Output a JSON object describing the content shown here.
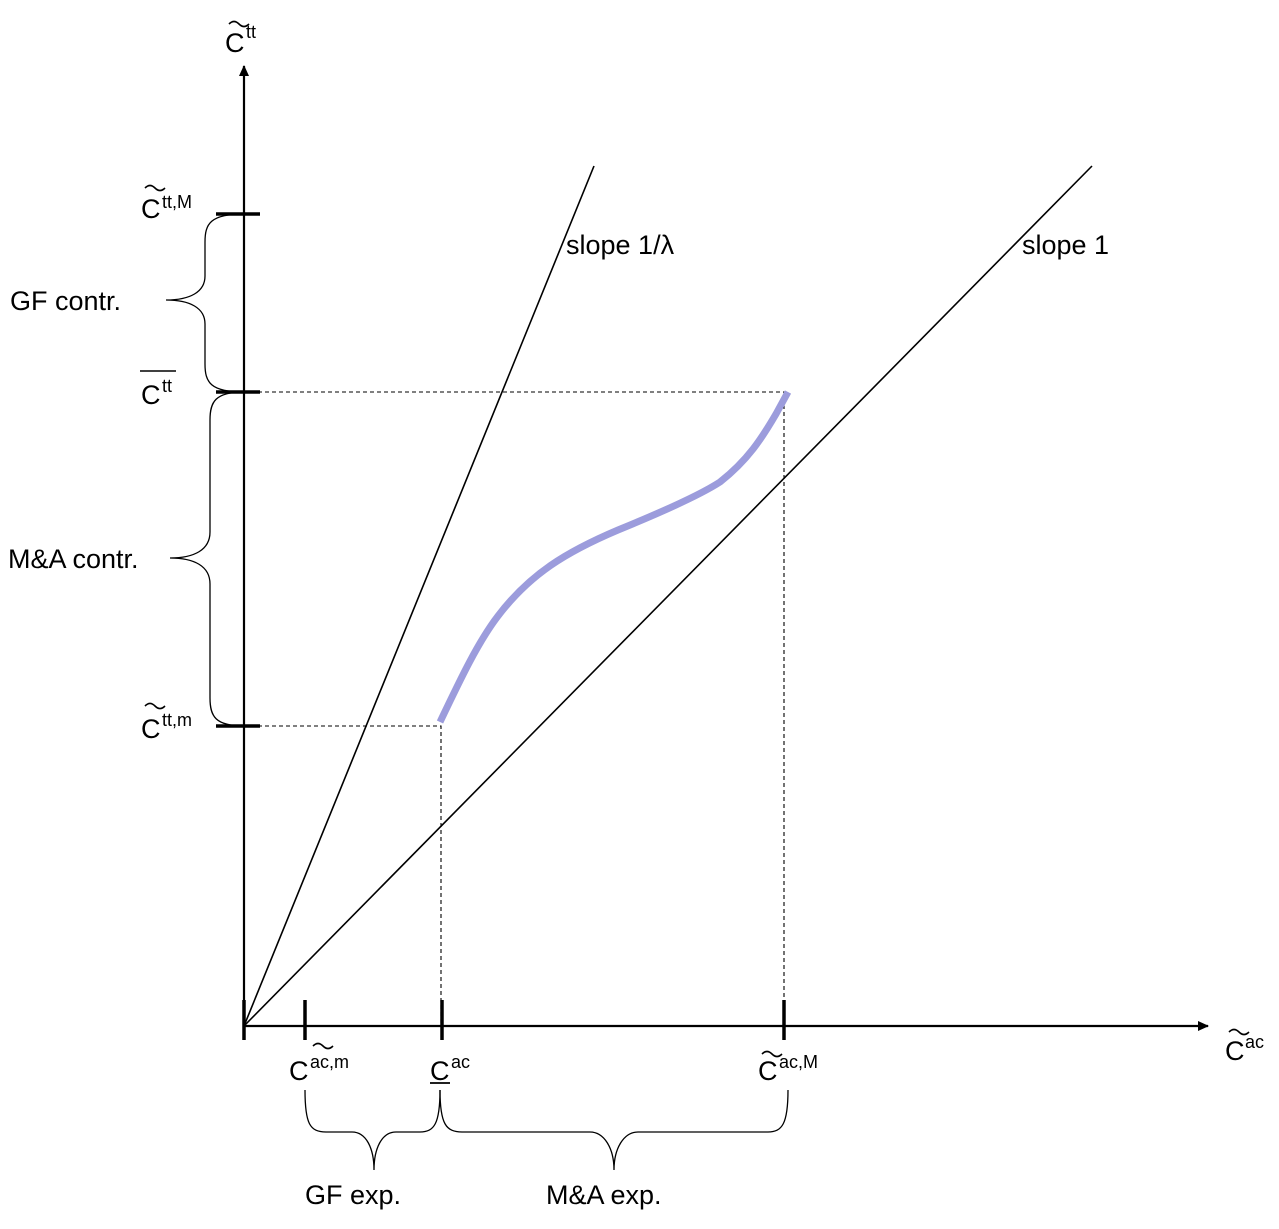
{
  "axes": {
    "y_label": {
      "base": "C",
      "sup": "tt",
      "decoration": "tilde"
    },
    "x_label": {
      "base": "C",
      "sup": "ac",
      "decoration": "tilde"
    }
  },
  "y_ticks": [
    {
      "id": "ctt-M",
      "base": "C",
      "sup": "tt,M",
      "decoration": "tilde"
    },
    {
      "id": "ctt-bar",
      "base": "C",
      "sup": "tt",
      "decoration": "overline"
    },
    {
      "id": "ctt-m",
      "base": "C",
      "sup": "tt,m",
      "decoration": "tilde"
    }
  ],
  "x_ticks": [
    {
      "id": "cac-m",
      "base": "C",
      "sup": "ac,m",
      "decoration": "tilde"
    },
    {
      "id": "cac-under",
      "base": "C",
      "sup": "ac",
      "decoration": "underline"
    },
    {
      "id": "cac-M",
      "base": "C",
      "sup": "ac,M",
      "decoration": "tilde"
    }
  ],
  "lines": {
    "steep": "slope 1/λ",
    "unit": "slope 1"
  },
  "braces": {
    "gf_contr": "GF contr.",
    "ma_contr": "M&A contr.",
    "gf_exp": "GF exp.",
    "ma_exp": "M&A exp."
  },
  "colors": {
    "curve": "#9c9cdc",
    "ink": "#000000"
  }
}
